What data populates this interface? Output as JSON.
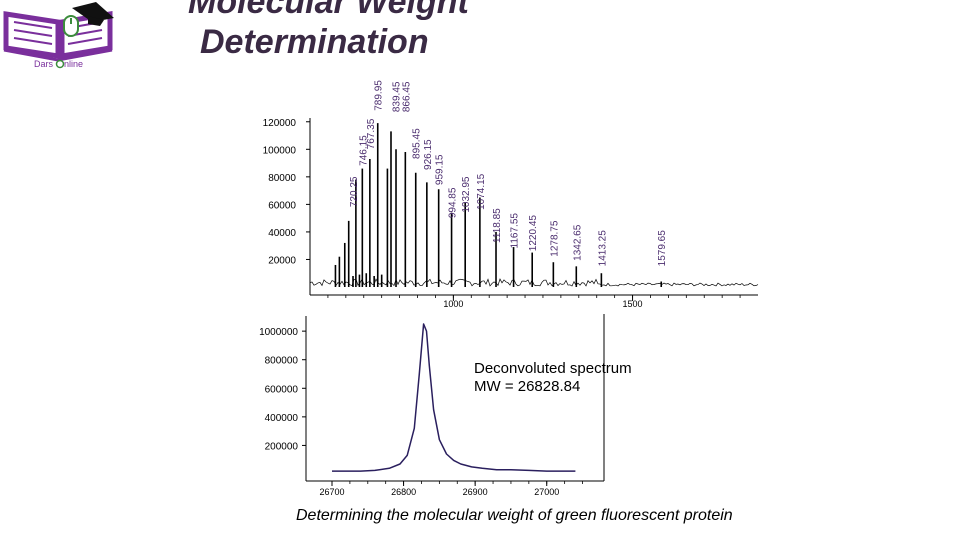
{
  "logo": {
    "text_left": "Dars",
    "text_right": "nline"
  },
  "title": {
    "line1": "Molecular Weight",
    "line2": "Determination"
  },
  "caption": "Determining the molecular weight of green fluorescent protein",
  "colors": {
    "ms_label": "#4b2d6e",
    "peak": "#000000",
    "deconv_line": "#2a1f5e",
    "logo_purple": "#7a2f9c",
    "title": "#3a2a44"
  },
  "chart_data": [
    {
      "type": "line",
      "ylim": [
        0,
        130000
      ],
      "xlim": [
        600,
        1850
      ],
      "xticks": [
        "1000",
        "1500"
      ],
      "xtick_values": [
        1000,
        1500
      ],
      "yticks": [
        "120000",
        "100000",
        "80000",
        "60000",
        "40000",
        "20000"
      ],
      "ytick_values": [
        120000,
        100000,
        80000,
        60000,
        40000,
        20000
      ],
      "peaks": [
        {
          "x": 671,
          "y": 16000
        },
        {
          "x": 682,
          "y": 22000
        },
        {
          "x": 697,
          "y": 32000
        },
        {
          "x": 708,
          "y": 48000
        },
        {
          "x": 720,
          "y": 8000
        },
        {
          "x": 728,
          "y": 78000
        },
        {
          "x": 738,
          "y": 9000
        },
        {
          "x": 746,
          "y": 86000
        },
        {
          "x": 757,
          "y": 10000
        },
        {
          "x": 767,
          "y": 93000
        },
        {
          "x": 779,
          "y": 8000
        },
        {
          "x": 789,
          "y": 119000
        },
        {
          "x": 800,
          "y": 9000
        },
        {
          "x": 816,
          "y": 86000
        },
        {
          "x": 826,
          "y": 113000
        },
        {
          "x": 840,
          "y": 100000
        },
        {
          "x": 866,
          "y": 98000
        },
        {
          "x": 895,
          "y": 83000
        },
        {
          "x": 926,
          "y": 76000
        },
        {
          "x": 959,
          "y": 71000
        },
        {
          "x": 995,
          "y": 54000
        },
        {
          "x": 1033,
          "y": 61000
        },
        {
          "x": 1074,
          "y": 65000
        },
        {
          "x": 1119,
          "y": 40000
        },
        {
          "x": 1168,
          "y": 29000
        },
        {
          "x": 1220,
          "y": 25000
        },
        {
          "x": 1279,
          "y": 18000
        },
        {
          "x": 1343,
          "y": 15000
        },
        {
          "x": 1413,
          "y": 10000
        },
        {
          "x": 1580,
          "y": 4000
        }
      ],
      "annotations": [
        {
          "text": "720.25",
          "x": 720,
          "yv": 58000
        },
        {
          "text": "746.15",
          "x": 746,
          "yv": 88000
        },
        {
          "text": "767.35",
          "x": 767,
          "yv": 100000
        },
        {
          "text": "789.95",
          "x": 789,
          "yv": 128000
        },
        {
          "text": "839.45",
          "x": 839,
          "yv": 127000
        },
        {
          "text": "866.45",
          "x": 866,
          "yv": 127000
        },
        {
          "text": "895.45",
          "x": 895,
          "yv": 93000
        },
        {
          "text": "926.15",
          "x": 926,
          "yv": 85000
        },
        {
          "text": "959.15",
          "x": 959,
          "yv": 74000
        },
        {
          "text": "994.85",
          "x": 995,
          "yv": 50000
        },
        {
          "text": "1032.95",
          "x": 1033,
          "yv": 54000
        },
        {
          "text": "1074.15",
          "x": 1074,
          "yv": 56000
        },
        {
          "text": "1118.85",
          "x": 1119,
          "yv": 32000
        },
        {
          "text": "1167.55",
          "x": 1168,
          "yv": 28000
        },
        {
          "text": "1220.45",
          "x": 1220,
          "yv": 26000
        },
        {
          "text": "1278.75",
          "x": 1279,
          "yv": 22000
        },
        {
          "text": "1342.65",
          "x": 1343,
          "yv": 19000
        },
        {
          "text": "1413.25",
          "x": 1413,
          "yv": 15000
        },
        {
          "text": "1579.65",
          "x": 1580,
          "yv": 15000
        }
      ]
    },
    {
      "type": "line",
      "ylim": [
        0,
        1120000
      ],
      "xlim": [
        26700,
        27080
      ],
      "xticks": [
        "26700",
        "26800",
        "26900",
        "27000"
      ],
      "xtick_values": [
        26700,
        26800,
        26900,
        27000
      ],
      "yticks": [
        "1000000",
        "800000",
        "600000",
        "400000",
        "200000"
      ],
      "ytick_values": [
        1000000,
        800000,
        600000,
        400000,
        200000
      ],
      "x": [
        26700,
        26740,
        26760,
        26780,
        26795,
        26805,
        26815,
        26822,
        26828,
        26832,
        26836,
        26842,
        26850,
        26860,
        26870,
        26880,
        26895,
        26910,
        26930,
        26950,
        26975,
        27000,
        27040
      ],
      "y": [
        20000,
        20000,
        25000,
        40000,
        70000,
        130000,
        320000,
        700000,
        1050000,
        1000000,
        760000,
        450000,
        240000,
        140000,
        95000,
        70000,
        50000,
        40000,
        30000,
        30000,
        25000,
        20000,
        20000
      ],
      "annotations": [
        {
          "text": "Deconvoluted spectrum"
        },
        {
          "text": "MW = 26828.84"
        }
      ]
    }
  ]
}
